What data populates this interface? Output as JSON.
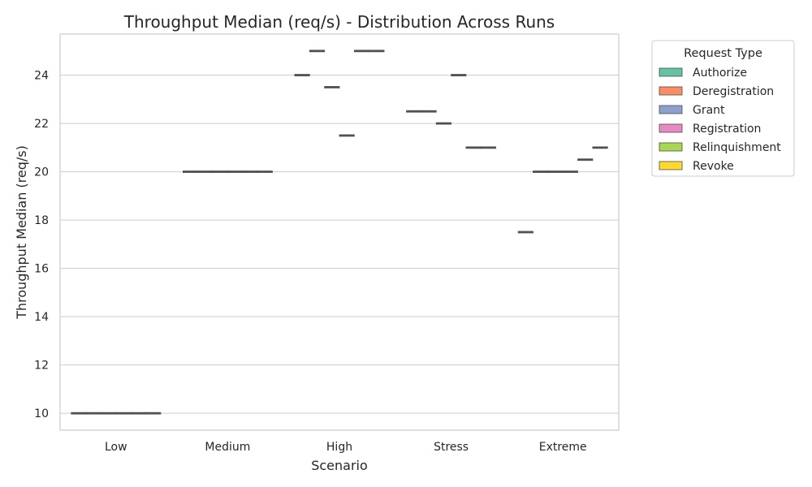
{
  "chart_data": {
    "type": "box",
    "title": "Throughput Median (req/s) - Distribution Across Runs",
    "xlabel": "Scenario",
    "ylabel": "Throughput Median (req/s)",
    "categories": [
      "Low",
      "Medium",
      "High",
      "Stress",
      "Extreme"
    ],
    "ylim": [
      9.3,
      25.7
    ],
    "yticks": [
      10,
      12,
      14,
      16,
      18,
      20,
      22,
      24
    ],
    "grid": true,
    "legend": {
      "title": "Request Type",
      "placement": "outside-upper-right"
    },
    "series": [
      {
        "name": "Authorize",
        "color": "#66c2a5",
        "values": [
          10,
          20,
          24,
          22.5,
          17.5
        ]
      },
      {
        "name": "Deregistration",
        "color": "#fc8d62",
        "values": [
          10,
          20,
          25,
          22.5,
          20
        ]
      },
      {
        "name": "Grant",
        "color": "#8da0cb",
        "values": [
          10,
          20,
          23.5,
          22,
          20
        ]
      },
      {
        "name": "Registration",
        "color": "#e78ac3",
        "values": [
          10,
          20,
          21.5,
          24,
          20
        ]
      },
      {
        "name": "Relinquishment",
        "color": "#a6d854",
        "values": [
          10,
          20,
          25,
          21,
          20.5
        ]
      },
      {
        "name": "Revoke",
        "color": "#ffd92f",
        "values": [
          10,
          20,
          25,
          21,
          21
        ]
      }
    ]
  }
}
